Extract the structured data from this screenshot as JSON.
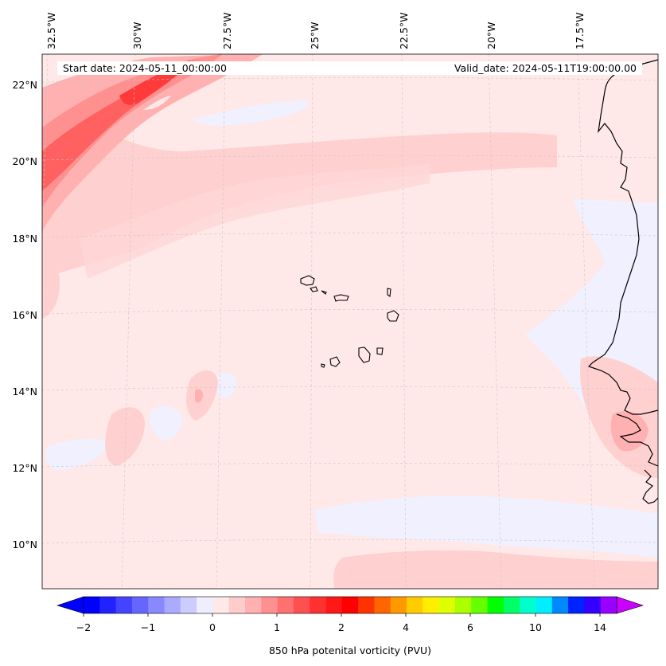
{
  "map": {
    "start_date": "Start date: 2024-05-11_00:00:00",
    "valid_date": "Valid_date: 2024-05-11T19:00:00.00",
    "lon_labels": [
      "32.5°W",
      "30°W",
      "27.5°W",
      "25°W",
      "22.5°W",
      "20°W",
      "17.5°W"
    ],
    "lat_labels": [
      "22°N",
      "20°N",
      "18°N",
      "16°N",
      "14°N",
      "12°N",
      "10°N"
    ],
    "field_variable": "850 hPa potential vorticity",
    "background_color": "#ffe8e8"
  },
  "colorbar": {
    "label": "850 hPa potenital vorticity (PVU)",
    "tick_labels": [
      "−2",
      "−1",
      "0",
      "1",
      "2",
      "4",
      "6",
      "10",
      "14"
    ],
    "under_color": "#0000ff",
    "over_color": "#cc00ff",
    "colors": [
      "#0000ff",
      "#2222ff",
      "#4444ff",
      "#6666ff",
      "#8888ff",
      "#aaaaff",
      "#ccccff",
      "#eeeeff",
      "#ffe8e8",
      "#ffcccc",
      "#ffb0b0",
      "#ff9090",
      "#ff7070",
      "#ff5050",
      "#ff3030",
      "#ff1818",
      "#ff0000",
      "#ff3300",
      "#ff6600",
      "#ff9900",
      "#ffcc00",
      "#ffee00",
      "#ddff00",
      "#aaff00",
      "#66ff00",
      "#00ff00",
      "#00ff66",
      "#00ffcc",
      "#00eeff",
      "#0088ff",
      "#0022ff",
      "#3300ff",
      "#9900ff"
    ]
  }
}
